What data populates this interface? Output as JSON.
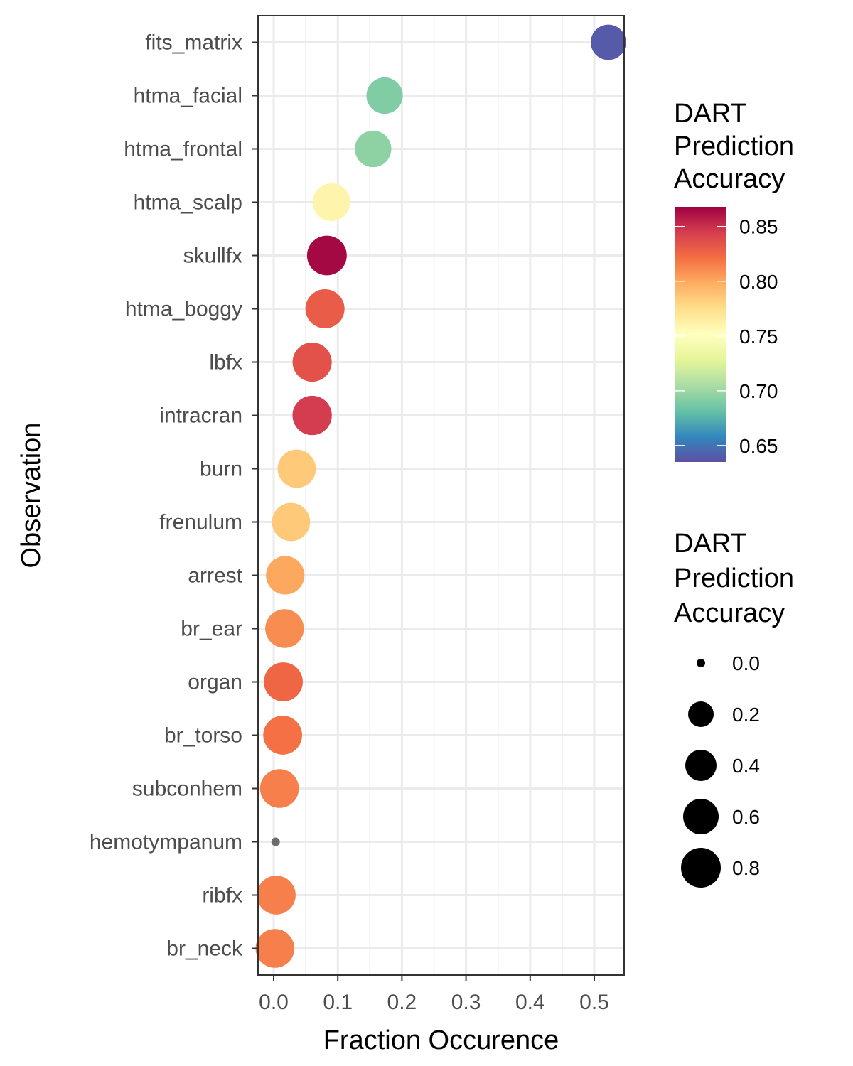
{
  "chart_data": {
    "type": "scatter",
    "xlabel": "Fraction Occurence",
    "ylabel": "Observation",
    "xlim": [
      -0.013,
      0.55
    ],
    "x_ticks": [
      "0.0",
      "0.1",
      "0.2",
      "0.3",
      "0.4",
      "0.5"
    ],
    "grid": true,
    "color_scale": "Spectral (red = high, blue = low)",
    "points": [
      {
        "category": "fits_matrix",
        "x": 0.522,
        "color_value": 0.64,
        "size_value": 0.64
      },
      {
        "category": "htma_facial",
        "x": 0.173,
        "color_value": 0.69,
        "size_value": 0.69
      },
      {
        "category": "htma_frontal",
        "x": 0.155,
        "color_value": 0.695,
        "size_value": 0.695
      },
      {
        "category": "htma_scalp",
        "x": 0.09,
        "color_value": 0.76,
        "size_value": 0.76
      },
      {
        "category": "skullfx",
        "x": 0.083,
        "color_value": 0.865,
        "size_value": 0.865
      },
      {
        "category": "htma_boggy",
        "x": 0.08,
        "color_value": 0.83,
        "size_value": 0.83
      },
      {
        "category": "lbfx",
        "x": 0.06,
        "color_value": 0.835,
        "size_value": 0.835
      },
      {
        "category": "intracran",
        "x": 0.06,
        "color_value": 0.845,
        "size_value": 0.845
      },
      {
        "category": "burn",
        "x": 0.036,
        "color_value": 0.785,
        "size_value": 0.785
      },
      {
        "category": "frenulum",
        "x": 0.027,
        "color_value": 0.785,
        "size_value": 0.785
      },
      {
        "category": "arrest",
        "x": 0.018,
        "color_value": 0.8,
        "size_value": 0.8
      },
      {
        "category": "br_ear",
        "x": 0.017,
        "color_value": 0.81,
        "size_value": 0.81
      },
      {
        "category": "organ",
        "x": 0.015,
        "color_value": 0.825,
        "size_value": 0.825
      },
      {
        "category": "br_torso",
        "x": 0.014,
        "color_value": 0.82,
        "size_value": 0.82
      },
      {
        "category": "subconhem",
        "x": 0.009,
        "color_value": 0.815,
        "size_value": 0.815
      },
      {
        "category": "hemotympanum",
        "x": 0.003,
        "color_value": null,
        "size_value": 0.0
      },
      {
        "category": "ribfx",
        "x": 0.004,
        "color_value": 0.815,
        "size_value": 0.815
      },
      {
        "category": "br_neck",
        "x": 0.002,
        "color_value": 0.815,
        "size_value": 0.815
      }
    ],
    "color_legend": {
      "title": [
        "DART",
        "Prediction",
        "Accuracy"
      ],
      "min": 0.635,
      "max": 0.868,
      "ticks": [
        {
          "value": 0.85,
          "label": "0.85"
        },
        {
          "value": 0.8,
          "label": "0.80"
        },
        {
          "value": 0.75,
          "label": "0.75"
        },
        {
          "value": 0.7,
          "label": "0.70"
        },
        {
          "value": 0.65,
          "label": "0.65"
        }
      ]
    },
    "size_legend": {
      "title": [
        "DART",
        "Prediction",
        "Accuracy"
      ],
      "entries": [
        {
          "value": 0.0,
          "label": "0.0"
        },
        {
          "value": 0.2,
          "label": "0.2"
        },
        {
          "value": 0.4,
          "label": "0.4"
        },
        {
          "value": 0.6,
          "label": "0.6"
        },
        {
          "value": 0.8,
          "label": "0.8"
        }
      ]
    },
    "na_color": "#6b6b6b"
  }
}
